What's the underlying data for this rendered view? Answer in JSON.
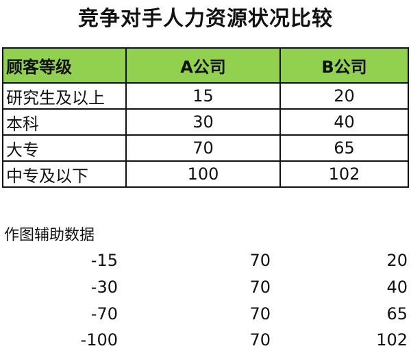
{
  "title": "竞争对手人力资源状况比较",
  "table": {
    "headers": [
      "顾客等级",
      "A公司",
      "B公司"
    ],
    "rows": [
      [
        "研究生及以上",
        "15",
        "20"
      ],
      [
        "本科",
        "30",
        "40"
      ],
      [
        "大专",
        "70",
        "65"
      ],
      [
        "中专及以下",
        "100",
        "102"
      ]
    ],
    "header_color": "#92d050"
  },
  "aux": {
    "label": "作图辅助数据",
    "rows": [
      [
        "-15",
        "70",
        "20"
      ],
      [
        "-30",
        "70",
        "40"
      ],
      [
        "-70",
        "70",
        "65"
      ],
      [
        "-100",
        "70",
        "102"
      ]
    ]
  }
}
